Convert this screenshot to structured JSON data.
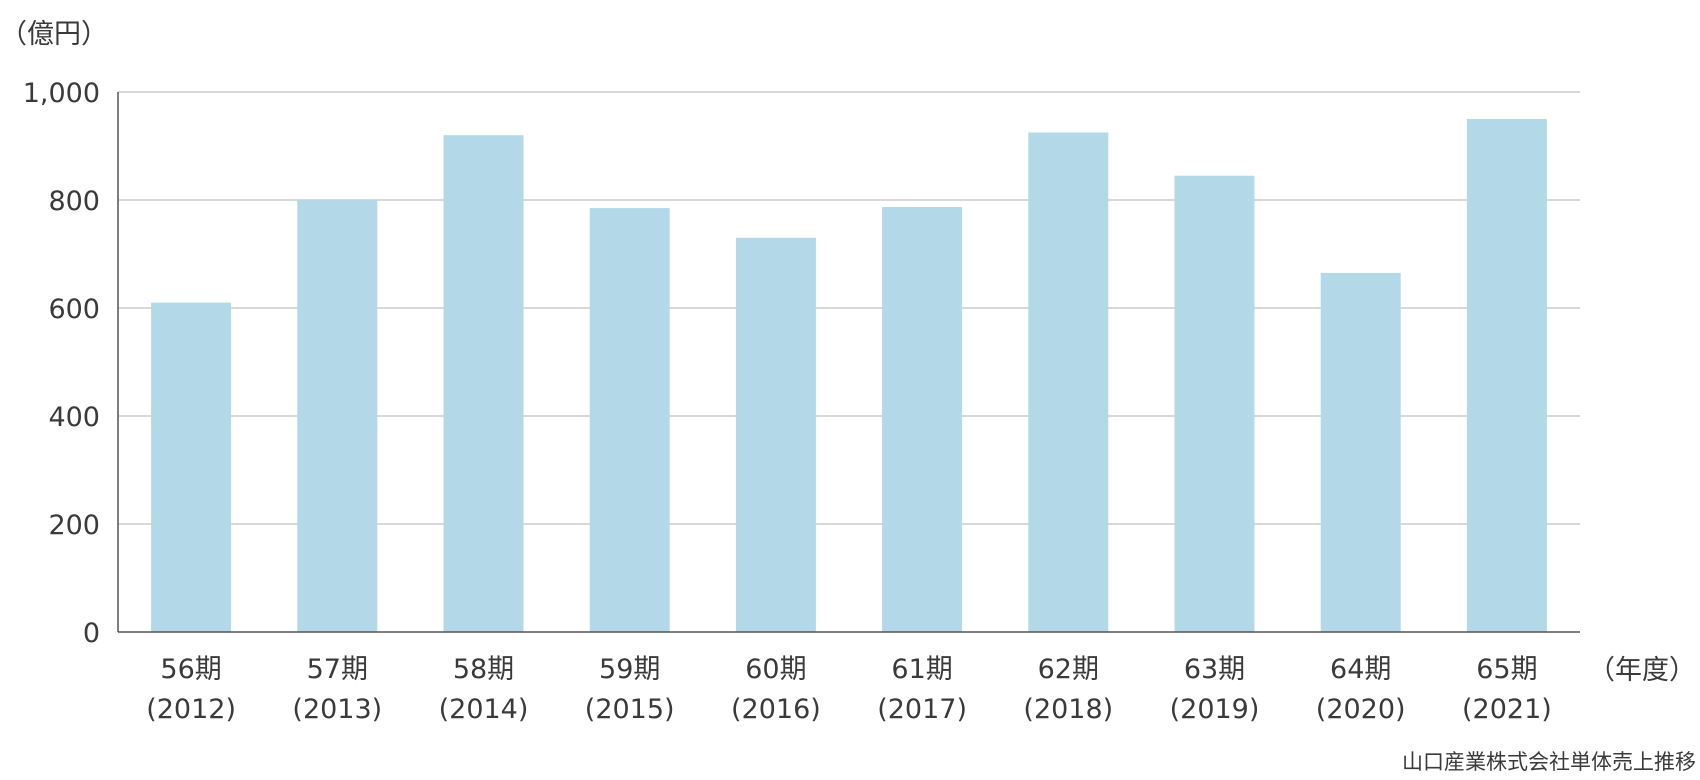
{
  "y_unit_label": "（億円）",
  "x_unit_label": "（年度）",
  "caption": "山口産業株式会社単体売上推移",
  "colors": {
    "bar": "#b3d9e8",
    "grid": "#cccccc",
    "axis": "#555555",
    "text": "#3a3a3a"
  },
  "chart_data": {
    "type": "bar",
    "categories": [
      [
        "56期",
        "(2012)"
      ],
      [
        "57期",
        "(2013)"
      ],
      [
        "58期",
        "(2014)"
      ],
      [
        "59期",
        "(2015)"
      ],
      [
        "60期",
        "(2016)"
      ],
      [
        "61期",
        "(2017)"
      ],
      [
        "62期",
        "(2018)"
      ],
      [
        "63期",
        "(2019)"
      ],
      [
        "64期",
        "(2020)"
      ],
      [
        "65期",
        "(2021)"
      ]
    ],
    "values": [
      610,
      800,
      920,
      785,
      730,
      787,
      925,
      845,
      665,
      950
    ],
    "ylim": [
      0,
      1000
    ],
    "yticks": [
      0,
      200,
      400,
      600,
      800,
      1000
    ],
    "ytick_labels": [
      "0",
      "200",
      "400",
      "600",
      "800",
      "1,000"
    ],
    "grid": true,
    "legend": "none"
  }
}
